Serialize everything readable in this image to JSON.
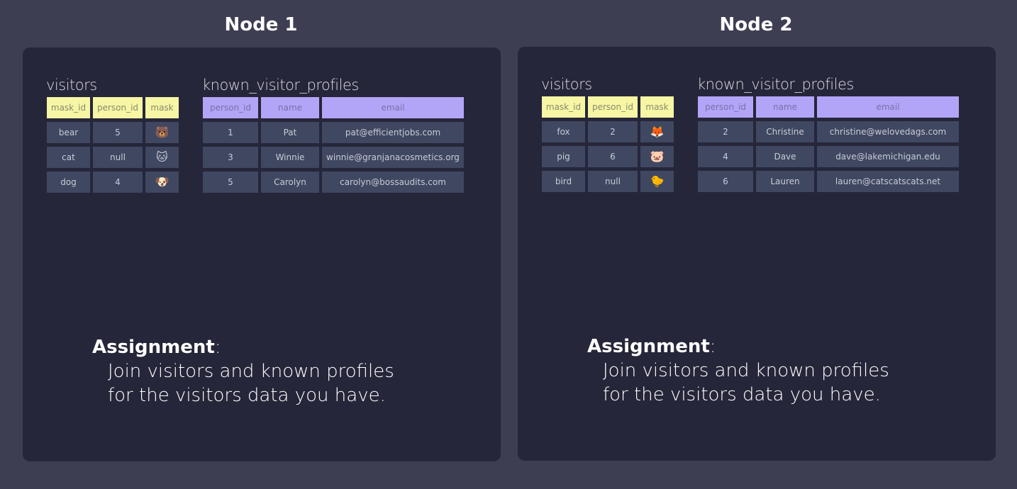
{
  "nodes": [
    {
      "title": "Node 1",
      "visitors": {
        "label": "visitors",
        "headers": [
          "mask_id",
          "person_id",
          "mask"
        ],
        "rows": [
          [
            "bear",
            "5",
            "🐻"
          ],
          [
            "cat",
            "null",
            "🐱"
          ],
          [
            "dog",
            "4",
            "🐶"
          ]
        ]
      },
      "profiles": {
        "label": "known_visitor_profiles",
        "headers": [
          "person_id",
          "name",
          "email"
        ],
        "rows": [
          [
            "1",
            "Pat",
            "pat@efficientjobs.com"
          ],
          [
            "3",
            "Winnie",
            "winnie@granjanacosmetics.org"
          ],
          [
            "5",
            "Carolyn",
            "carolyn@bossaudits.com"
          ]
        ]
      },
      "assignment": {
        "heading": "Assignment",
        "colon": ":",
        "line1": "Join visitors and known profiles",
        "line2": "for the visitors data you have."
      }
    },
    {
      "title": "Node 2",
      "visitors": {
        "label": "visitors",
        "headers": [
          "mask_id",
          "person_id",
          "mask"
        ],
        "rows": [
          [
            "fox",
            "2",
            "🦊"
          ],
          [
            "pig",
            "6",
            "🐷"
          ],
          [
            "bird",
            "null",
            "🐤"
          ]
        ]
      },
      "profiles": {
        "label": "known_visitor_profiles",
        "headers": [
          "person_id",
          "name",
          "email"
        ],
        "rows": [
          [
            "2",
            "Christine",
            "christine@welovedags.com"
          ],
          [
            "4",
            "Dave",
            "dave@lakemichigan.edu"
          ],
          [
            "6",
            "Lauren",
            "lauren@catscatscats.net"
          ]
        ]
      },
      "assignment": {
        "heading": "Assignment",
        "colon": ":",
        "line1": "Join visitors and known profiles",
        "line2": "for the visitors data you have."
      }
    }
  ],
  "colors": {
    "background": "#3e3e53",
    "panel": "#26263a",
    "visitors_header": "#f6f6a4",
    "profiles_header": "#b2a5f8",
    "cell": "#3f4761"
  }
}
